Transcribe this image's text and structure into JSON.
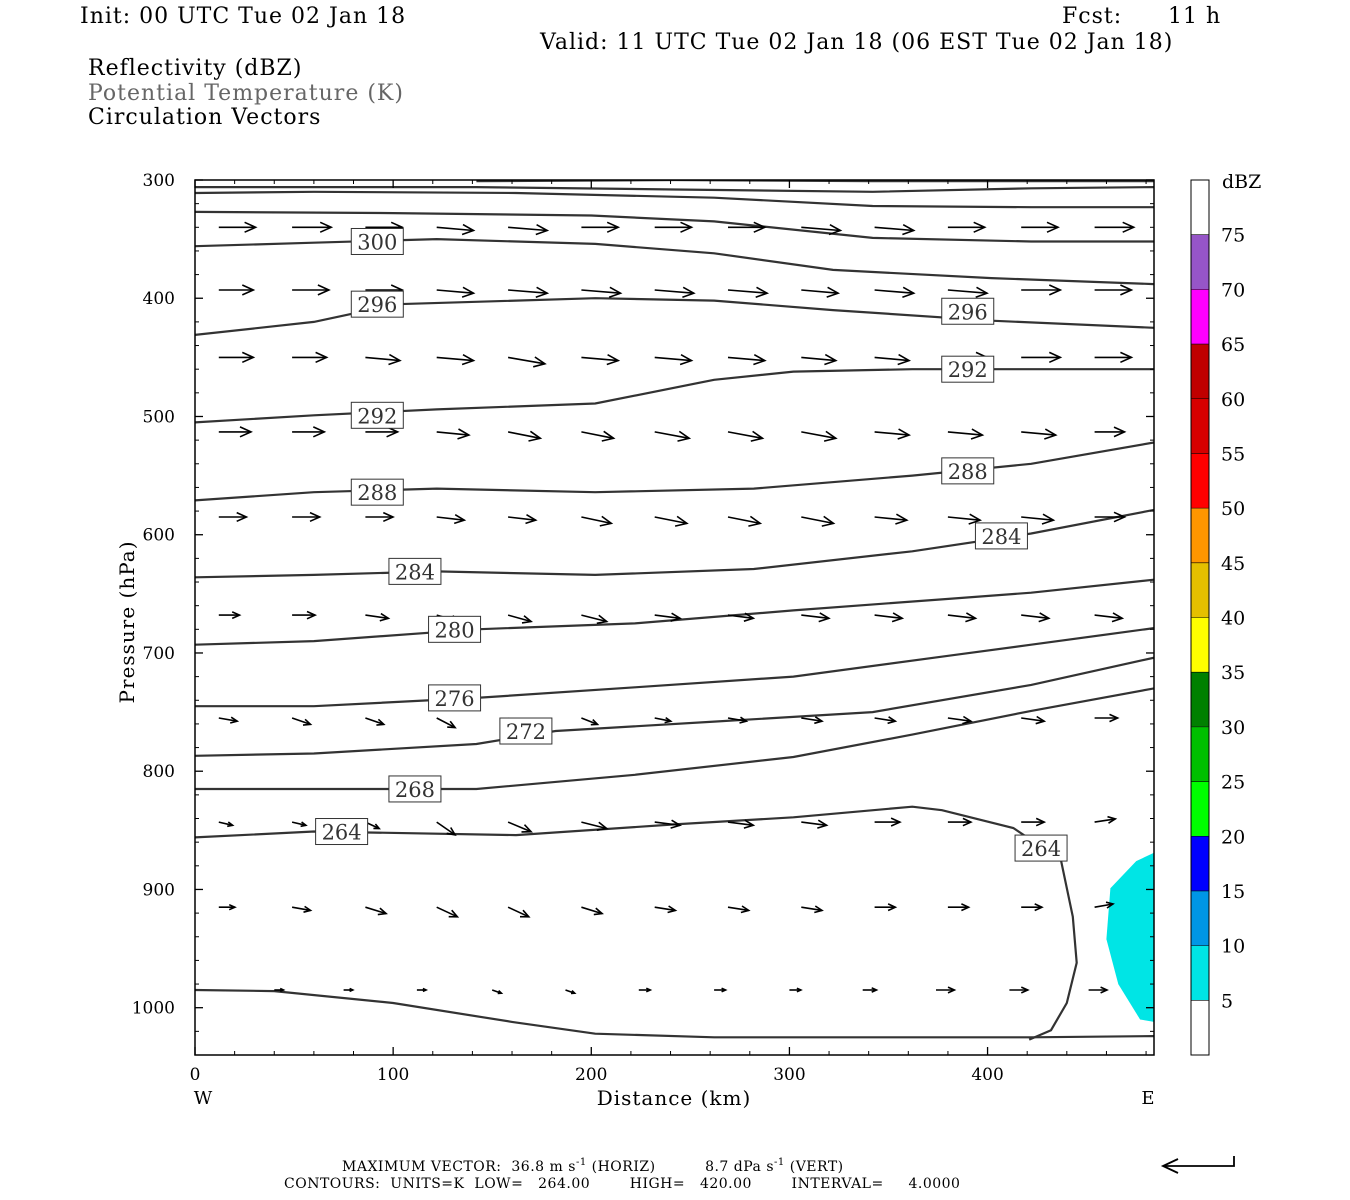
{
  "header": {
    "init": "Init: 00 UTC Tue 02 Jan 18",
    "fcst_label": "Fcst:",
    "fcst_value": "11 h",
    "valid": "Valid: 11 UTC Tue 02 Jan 18 (06 EST Tue 02 Jan 18)",
    "field1": "Reflectivity (dBZ)",
    "field2": "Potential Temperature (K)",
    "field3": "Circulation Vectors"
  },
  "chart_data": {
    "type": "cross-section contour",
    "xlabel": "Distance (km)",
    "ylabel": "Pressure (hPa)",
    "xlim": [
      0,
      484
    ],
    "ylim": [
      1040,
      300
    ],
    "x_ticks": [
      0,
      100,
      200,
      300,
      400
    ],
    "y_ticks": [
      300,
      400,
      500,
      600,
      700,
      800,
      900,
      1000
    ],
    "x_end_labels": {
      "left": "W",
      "right": "E"
    },
    "theta_contours": [
      {
        "level": 264,
        "labeled": true,
        "points": [
          [
            0,
            856
          ],
          [
            60,
            851
          ],
          [
            162,
            854
          ],
          [
            242,
            845
          ],
          [
            302,
            839
          ],
          [
            362,
            830
          ],
          [
            377,
            833
          ],
          [
            413,
            848
          ],
          [
            437,
            875
          ],
          [
            443,
            923
          ],
          [
            445,
            962
          ],
          [
            440,
            996
          ],
          [
            432,
            1019
          ],
          [
            421,
            1027
          ]
        ]
      },
      {
        "level": 268,
        "labeled": true,
        "points": [
          [
            0,
            815
          ],
          [
            60,
            815
          ],
          [
            142,
            815
          ],
          [
            222,
            803
          ],
          [
            302,
            788
          ],
          [
            362,
            769
          ],
          [
            422,
            749
          ],
          [
            484,
            730
          ]
        ]
      },
      {
        "level": 272,
        "labeled": true,
        "points": [
          [
            0,
            787
          ],
          [
            60,
            785
          ],
          [
            142,
            777
          ],
          [
            182,
            766
          ],
          [
            262,
            758
          ],
          [
            342,
            750
          ],
          [
            422,
            727
          ],
          [
            484,
            704
          ]
        ]
      },
      {
        "level": 276,
        "labeled": true,
        "points": [
          [
            0,
            745
          ],
          [
            60,
            745
          ],
          [
            142,
            738
          ],
          [
            222,
            729
          ],
          [
            302,
            720
          ],
          [
            382,
            702
          ],
          [
            422,
            693
          ],
          [
            484,
            679
          ]
        ]
      },
      {
        "level": 280,
        "labeled": true,
        "points": [
          [
            0,
            693
          ],
          [
            60,
            690
          ],
          [
            142,
            680
          ],
          [
            222,
            675
          ],
          [
            302,
            664
          ],
          [
            382,
            654
          ],
          [
            422,
            649
          ],
          [
            484,
            638
          ]
        ]
      },
      {
        "level": 284,
        "labeled": true,
        "points": [
          [
            0,
            636
          ],
          [
            60,
            634
          ],
          [
            122,
            631
          ],
          [
            202,
            634
          ],
          [
            282,
            629
          ],
          [
            362,
            614
          ],
          [
            422,
            599
          ],
          [
            484,
            579
          ]
        ]
      },
      {
        "level": 288,
        "labeled": true,
        "points": [
          [
            0,
            571
          ],
          [
            60,
            564
          ],
          [
            122,
            561
          ],
          [
            202,
            564
          ],
          [
            282,
            561
          ],
          [
            362,
            550
          ],
          [
            422,
            540
          ],
          [
            484,
            522
          ]
        ]
      },
      {
        "level": 292,
        "labeled": true,
        "points": [
          [
            0,
            505
          ],
          [
            60,
            499
          ],
          [
            122,
            494
          ],
          [
            202,
            489
          ],
          [
            262,
            469
          ],
          [
            302,
            462
          ],
          [
            362,
            460
          ],
          [
            422,
            460
          ],
          [
            484,
            460
          ]
        ]
      },
      {
        "level": 296,
        "labeled": true,
        "points": [
          [
            0,
            431
          ],
          [
            60,
            420
          ],
          [
            102,
            405
          ],
          [
            202,
            400
          ],
          [
            262,
            402
          ],
          [
            322,
            410
          ],
          [
            402,
            419
          ],
          [
            484,
            425
          ]
        ]
      },
      {
        "level": 300,
        "labeled": true,
        "points": [
          [
            0,
            356
          ],
          [
            60,
            353
          ],
          [
            122,
            350
          ],
          [
            202,
            354
          ],
          [
            262,
            362
          ],
          [
            322,
            376
          ],
          [
            402,
            383
          ],
          [
            484,
            388
          ]
        ]
      },
      {
        "level": 304,
        "labeled": false,
        "points": [
          [
            0,
            327
          ],
          [
            100,
            328
          ],
          [
            200,
            330
          ],
          [
            262,
            335
          ],
          [
            342,
            349
          ],
          [
            422,
            352
          ],
          [
            484,
            352
          ]
        ]
      },
      {
        "level": 308,
        "labeled": false,
        "points": [
          [
            0,
            311
          ],
          [
            60,
            310
          ],
          [
            162,
            311
          ],
          [
            262,
            315
          ],
          [
            342,
            322
          ],
          [
            422,
            323
          ],
          [
            484,
            323
          ]
        ]
      },
      {
        "level": 312,
        "labeled": false,
        "points": [
          [
            0,
            306
          ],
          [
            142,
            306
          ],
          [
            242,
            308
          ],
          [
            342,
            310
          ],
          [
            422,
            307
          ],
          [
            484,
            306
          ]
        ]
      },
      {
        "level": 316,
        "labeled": false,
        "points": [
          [
            142,
            301
          ],
          [
            242,
            300
          ],
          [
            342,
            301
          ],
          [
            422,
            301
          ],
          [
            484,
            301
          ]
        ]
      }
    ],
    "ground_surface": {
      "points": [
        [
          0,
          985
        ],
        [
          40,
          986
        ],
        [
          100,
          996
        ],
        [
          160,
          1012
        ],
        [
          202,
          1022
        ],
        [
          262,
          1025
        ],
        [
          342,
          1025
        ],
        [
          422,
          1025
        ],
        [
          484,
          1024
        ]
      ]
    },
    "reflectivity_areas": [
      {
        "dbz_range": [
          5,
          10
        ],
        "color": "#00e5e5",
        "points": [
          [
            484,
            869
          ],
          [
            475,
            876
          ],
          [
            462,
            899
          ],
          [
            460,
            942
          ],
          [
            466,
            980
          ],
          [
            477,
            1010
          ],
          [
            484,
            1012
          ]
        ]
      }
    ],
    "colorbar": {
      "unit": "dBZ",
      "levels": [
        5,
        10,
        15,
        20,
        25,
        30,
        35,
        40,
        45,
        50,
        55,
        60,
        65,
        70,
        75
      ],
      "colors": [
        "#ffffff",
        "#00e5e5",
        "#0096e5",
        "#0000ff",
        "#00ff00",
        "#00c000",
        "#008000",
        "#ffff00",
        "#e5c000",
        "#ff9600",
        "#ff0000",
        "#d60000",
        "#c00000",
        "#ff00ff",
        "#9655c8",
        "#ffffff"
      ]
    },
    "vector_rows": [
      {
        "p": 340,
        "x": [
          12,
          49,
          86,
          122,
          158,
          195,
          232,
          269,
          306,
          343,
          380,
          417,
          454
        ],
        "u": [
          16,
          17,
          16,
          16,
          17,
          16,
          16,
          16,
          17,
          17,
          16,
          16,
          17
        ],
        "w": [
          0,
          0,
          0,
          1,
          1,
          0,
          0,
          0,
          1,
          1,
          0,
          0,
          0
        ]
      },
      {
        "p": 393,
        "x": [
          12,
          49,
          86,
          122,
          158,
          195,
          232,
          269,
          306,
          343,
          380,
          417,
          454
        ],
        "u": [
          15,
          16,
          16,
          16,
          17,
          17,
          17,
          17,
          16,
          17,
          17,
          17,
          16
        ],
        "w": [
          0,
          0,
          0,
          1,
          1,
          1,
          1,
          1,
          1,
          1,
          1,
          0,
          0
        ]
      },
      {
        "p": 450,
        "x": [
          12,
          49,
          86,
          122,
          158,
          195,
          232,
          269,
          306,
          343,
          380,
          417,
          454
        ],
        "u": [
          15,
          15,
          15,
          16,
          16,
          16,
          16,
          16,
          15,
          15,
          17,
          17,
          16
        ],
        "w": [
          0,
          0,
          1,
          1,
          2,
          1,
          1,
          1,
          1,
          1,
          0,
          0,
          0
        ]
      },
      {
        "p": 513,
        "x": [
          12,
          49,
          86,
          122,
          158,
          195,
          232,
          269,
          306,
          343,
          380,
          417,
          454
        ],
        "u": [
          14,
          14,
          14,
          14,
          14,
          14,
          15,
          15,
          15,
          15,
          15,
          15,
          13
        ],
        "w": [
          0,
          0,
          0,
          1,
          2,
          2,
          2,
          2,
          2,
          1,
          1,
          1,
          0
        ]
      },
      {
        "p": 585,
        "x": [
          12,
          49,
          86,
          122,
          158,
          195,
          232,
          269,
          306,
          343,
          380,
          417,
          454
        ],
        "u": [
          12,
          12,
          12,
          12,
          12,
          13,
          14,
          14,
          14,
          14,
          14,
          14,
          13
        ],
        "w": [
          0,
          0,
          0,
          1,
          1,
          2,
          2,
          2,
          2,
          1,
          1,
          1,
          0
        ]
      },
      {
        "p": 668,
        "x": [
          12,
          49,
          86,
          122,
          158,
          195,
          232,
          269,
          306,
          343,
          380,
          417,
          454
        ],
        "u": [
          9,
          10,
          10,
          10,
          10,
          11,
          11,
          11,
          12,
          12,
          12,
          12,
          12
        ],
        "w": [
          0,
          0,
          1,
          2,
          2,
          2,
          1,
          1,
          1,
          1,
          1,
          1,
          1
        ]
      },
      {
        "p": 755,
        "x": [
          12,
          49,
          86,
          122,
          158,
          195,
          232,
          269,
          306,
          343,
          380,
          417,
          454
        ],
        "u": [
          8,
          8,
          8,
          8,
          7,
          7,
          7,
          8,
          9,
          9,
          10,
          10,
          10
        ],
        "w": [
          1,
          2,
          2,
          3,
          3,
          2,
          1,
          1,
          1,
          1,
          1,
          1,
          0
        ]
      },
      {
        "p": 843,
        "x": [
          12,
          49,
          86,
          122,
          158,
          195,
          232,
          269,
          306,
          343,
          380,
          417,
          454
        ],
        "u": [
          6,
          6,
          6,
          8,
          10,
          11,
          11,
          11,
          11,
          11,
          10,
          10,
          9
        ],
        "w": [
          1,
          1,
          2,
          4,
          3,
          2,
          1,
          1,
          1,
          0,
          0,
          0,
          -1
        ]
      },
      {
        "p": 915,
        "x": [
          12,
          49,
          86,
          122,
          158,
          195,
          232,
          269,
          306,
          343,
          380,
          417,
          454
        ],
        "u": [
          7,
          8,
          9,
          9,
          9,
          9,
          9,
          9,
          9,
          9,
          9,
          9,
          8
        ],
        "w": [
          0,
          1,
          2,
          3,
          3,
          2,
          1,
          1,
          1,
          0,
          0,
          0,
          -1
        ]
      },
      {
        "p": 985,
        "x": [
          40,
          75,
          112,
          150,
          187,
          224,
          262,
          300,
          337,
          374,
          411,
          451
        ],
        "u": [
          4,
          4,
          4,
          4,
          4,
          5,
          5,
          5,
          6,
          8,
          8,
          8
        ],
        "w": [
          0,
          0,
          0,
          1,
          1,
          0,
          0,
          0,
          0,
          0,
          0,
          0
        ]
      }
    ]
  },
  "footer": {
    "max_vector_label": "MAXIMUM VECTOR:",
    "horiz_value": "36.8 m s",
    "horiz_exp": "-1",
    "horiz_tag": "(HORIZ)",
    "vert_value": "8.7 dPa s",
    "vert_exp": "-1",
    "vert_tag": "(VERT)",
    "contours_line": "CONTOURS:  UNITS=K  LOW=   264.00        HIGH=   420.00        INTERVAL=     4.0000"
  }
}
